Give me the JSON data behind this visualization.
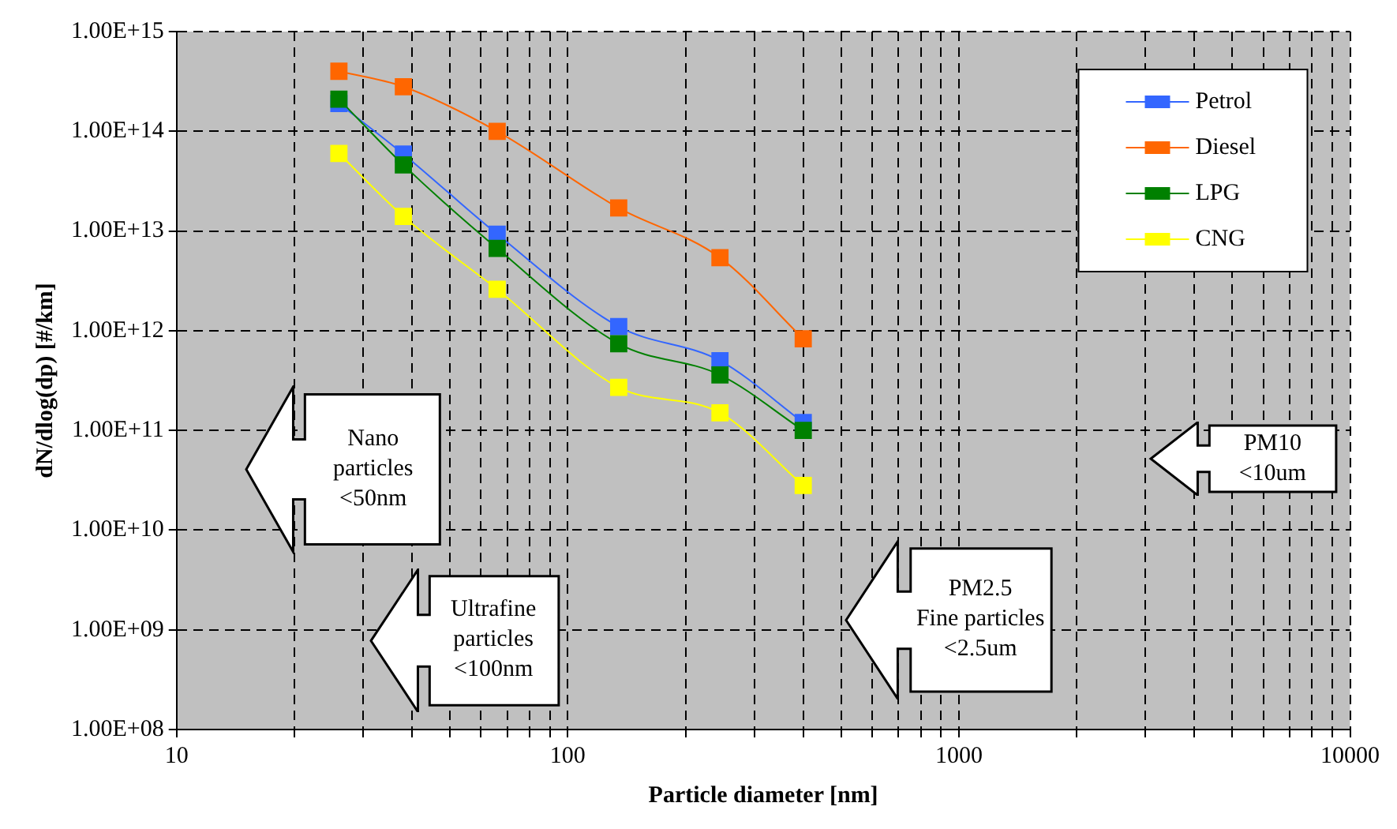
{
  "chart_data": {
    "type": "line",
    "xlabel": "Particle diameter [nm]",
    "ylabel": "dN/dlog(dp) [#/km]",
    "x": [
      26,
      38,
      66,
      135,
      245,
      400
    ],
    "series": [
      {
        "name": "Petrol",
        "color": "#3366ff",
        "values": [
          190000000000000.0,
          59000000000000.0,
          9300000000000.0,
          1100000000000.0,
          500000000000.0,
          120000000000.0
        ]
      },
      {
        "name": "Diesel",
        "color": "#ff6600",
        "values": [
          400000000000000.0,
          280000000000000.0,
          100000000000000.0,
          17000000000000.0,
          5400000000000.0,
          830000000000.0
        ]
      },
      {
        "name": "LPG",
        "color": "#008000",
        "values": [
          210000000000000.0,
          46000000000000.0,
          6700000000000.0,
          740000000000.0,
          360000000000.0,
          100000000000.0
        ]
      },
      {
        "name": "CNG",
        "color": "#ffff00",
        "values": [
          60000000000000.0,
          14000000000000.0,
          2600000000000.0,
          270000000000.0,
          150000000000.0,
          28000000000.0
        ]
      }
    ],
    "log": "xy",
    "xlim": [
      10,
      10000
    ],
    "ylim": [
      100000000.0,
      1000000000000000.0
    ],
    "xticks": [
      10,
      {
        "value": 20,
        "label": null
      },
      {
        "value": 30,
        "label": null
      },
      {
        "value": 40,
        "label": null
      },
      {
        "value": 50,
        "label": null
      },
      {
        "value": 60,
        "label": null
      },
      {
        "value": 70,
        "label": null
      },
      {
        "value": 80,
        "label": null
      },
      {
        "value": 90,
        "label": null
      },
      100,
      {
        "value": 200,
        "label": null
      },
      {
        "value": 300,
        "label": null
      },
      {
        "value": 400,
        "label": null
      },
      {
        "value": 500,
        "label": null
      },
      {
        "value": 600,
        "label": null
      },
      {
        "value": 700,
        "label": null
      },
      {
        "value": 800,
        "label": null
      },
      {
        "value": 900,
        "label": null
      },
      1000,
      {
        "value": 2000,
        "label": null
      },
      {
        "value": 3000,
        "label": null
      },
      {
        "value": 4000,
        "label": null
      },
      {
        "value": 5000,
        "label": null
      },
      {
        "value": 6000,
        "label": null
      },
      {
        "value": 7000,
        "label": null
      },
      {
        "value": 8000,
        "label": null
      },
      {
        "value": 9000,
        "label": null
      },
      10000
    ],
    "yticks": [
      {
        "value": 100000000.0,
        "label": "1.00E+08"
      },
      {
        "value": 1000000000.0,
        "label": "1.00E+09"
      },
      {
        "value": 10000000000.0,
        "label": "1.00E+10"
      },
      {
        "value": 100000000000.0,
        "label": "1.00E+11"
      },
      {
        "value": 1000000000000.0,
        "label": "1.00E+12"
      },
      {
        "value": 10000000000000.0,
        "label": "1.00E+13"
      },
      {
        "value": 100000000000000.0,
        "label": "1.00E+14"
      },
      {
        "value": 1000000000000000.0,
        "label": "1.00E+15"
      }
    ],
    "grid": true,
    "legend": "top right",
    "marker": "square",
    "line_style": "solid",
    "annotations": [
      "Nano\nparticles\n<50nm",
      "Ultrafine\nparticles\n<100nm",
      "PM2.5\nFine particles\n<2.5um",
      "PM10\n<10um"
    ]
  }
}
